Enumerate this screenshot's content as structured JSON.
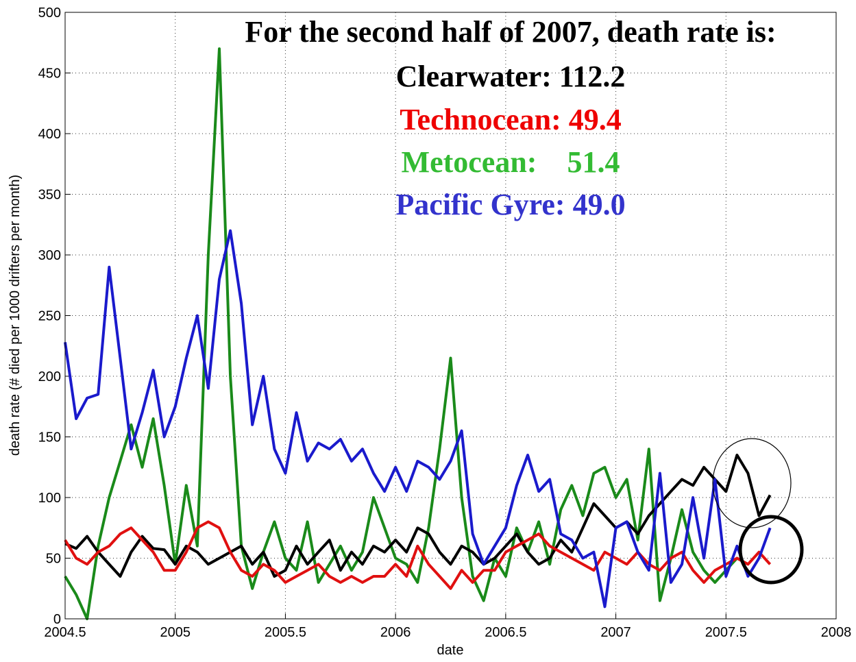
{
  "chart_data": {
    "type": "line",
    "xlabel": "date",
    "ylabel": "death rate (# died per 1000 drifters per month)",
    "xlim": [
      2004.5,
      2008
    ],
    "ylim": [
      0,
      500
    ],
    "xticks": [
      2004.5,
      2005,
      2005.5,
      2006,
      2006.5,
      2007,
      2007.5,
      2008
    ],
    "yticks": [
      0,
      50,
      100,
      150,
      200,
      250,
      300,
      350,
      400,
      450,
      500
    ],
    "grid": true,
    "x": [
      2004.5,
      2004.55,
      2004.6,
      2004.65,
      2004.7,
      2004.75,
      2004.8,
      2004.85,
      2004.9,
      2004.95,
      2005,
      2005.05,
      2005.1,
      2005.15,
      2005.2,
      2005.25,
      2005.3,
      2005.35,
      2005.4,
      2005.45,
      2005.5,
      2005.55,
      2005.6,
      2005.65,
      2005.7,
      2005.75,
      2005.8,
      2005.85,
      2005.9,
      2005.95,
      2006,
      2006.05,
      2006.1,
      2006.15,
      2006.2,
      2006.25,
      2006.3,
      2006.35,
      2006.4,
      2006.45,
      2006.5,
      2006.55,
      2006.6,
      2006.65,
      2006.7,
      2006.75,
      2006.8,
      2006.85,
      2006.9,
      2006.95,
      2007,
      2007.05,
      2007.1,
      2007.15,
      2007.2,
      2007.25,
      2007.3,
      2007.35,
      2007.4,
      2007.45,
      2007.5,
      2007.55,
      2007.6,
      2007.65,
      2007.7
    ],
    "series": [
      {
        "color": "#1a8a1a",
        "values": [
          35,
          20,
          0,
          60,
          100,
          130,
          160,
          125,
          165,
          110,
          45,
          110,
          60,
          300,
          470,
          200,
          60,
          25,
          55,
          80,
          50,
          40,
          80,
          30,
          45,
          60,
          40,
          55,
          100,
          75,
          50,
          45,
          30,
          75,
          140,
          215,
          100,
          35,
          15,
          50,
          35,
          75,
          55,
          80,
          45,
          90,
          110,
          85,
          120,
          125,
          100,
          115,
          65,
          140,
          15,
          50,
          90,
          55,
          40,
          30,
          40,
          50,
          45,
          null,
          null
        ]
      },
      {
        "color": "#000000",
        "values": [
          62,
          58,
          68,
          55,
          45,
          35,
          55,
          68,
          58,
          57,
          45,
          60,
          55,
          45,
          50,
          55,
          60,
          45,
          55,
          35,
          40,
          60,
          45,
          55,
          65,
          40,
          55,
          45,
          60,
          55,
          65,
          55,
          75,
          70,
          55,
          45,
          60,
          55,
          45,
          50,
          60,
          70,
          55,
          45,
          50,
          65,
          55,
          75,
          95,
          85,
          75,
          80,
          70,
          85,
          95,
          105,
          115,
          110,
          125,
          115,
          105,
          135,
          120,
          85,
          102
        ]
      },
      {
        "color": "#e01010",
        "values": [
          65,
          50,
          45,
          55,
          60,
          70,
          75,
          65,
          55,
          40,
          40,
          55,
          75,
          80,
          75,
          55,
          40,
          35,
          45,
          40,
          30,
          35,
          40,
          45,
          35,
          30,
          35,
          30,
          35,
          35,
          45,
          35,
          60,
          45,
          35,
          25,
          40,
          30,
          40,
          40,
          55,
          60,
          65,
          70,
          60,
          55,
          50,
          45,
          40,
          55,
          50,
          45,
          55,
          45,
          40,
          50,
          55,
          40,
          30,
          40,
          45,
          50,
          45,
          55,
          45
        ]
      },
      {
        "color": "#1a1acc",
        "values": [
          228,
          165,
          182,
          185,
          290,
          215,
          140,
          170,
          205,
          150,
          175,
          215,
          250,
          190,
          280,
          320,
          260,
          160,
          200,
          140,
          120,
          170,
          130,
          145,
          140,
          148,
          130,
          140,
          120,
          105,
          125,
          105,
          130,
          125,
          115,
          130,
          155,
          70,
          45,
          60,
          75,
          110,
          135,
          105,
          115,
          70,
          65,
          50,
          55,
          10,
          75,
          80,
          55,
          40,
          120,
          30,
          45,
          100,
          50,
          115,
          35,
          60,
          35,
          50,
          75
        ]
      }
    ],
    "annotations": [
      {
        "text": "For the second half of 2007, death rate is:",
        "color": "#000000"
      },
      {
        "text": "Clearwater: 112.2",
        "color": "#000000"
      },
      {
        "text": "Technocean: 49.4",
        "color": "#ee0000"
      },
      {
        "text": "Metocean:    51.4",
        "color": "#33bb33"
      },
      {
        "text": "Pacific Gyre: 49.0",
        "color": "#3333cc"
      }
    ]
  }
}
